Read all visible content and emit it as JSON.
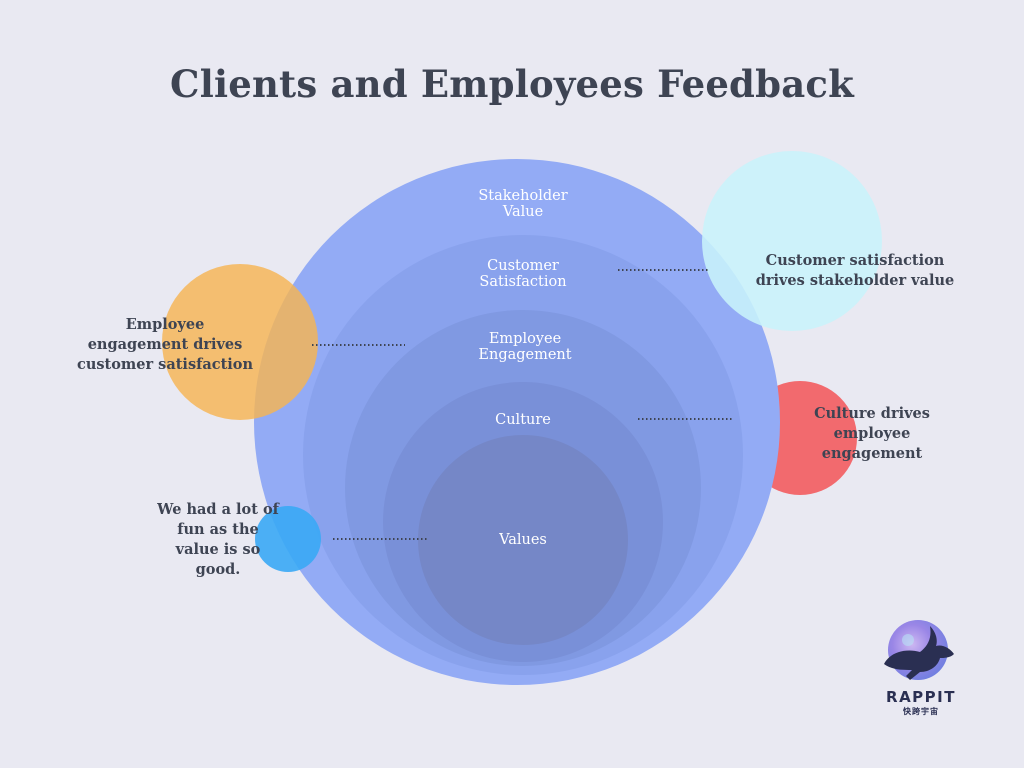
{
  "title": "Clients and Employees Feedback",
  "rings": [
    {
      "label_line1": "Stakeholder",
      "label_line2": "Value"
    },
    {
      "label_line1": "Customer",
      "label_line2": "Satisfaction"
    },
    {
      "label_line1": "Employee",
      "label_line2": "Engagement"
    },
    {
      "label_line1": "Culture",
      "label_line2": ""
    },
    {
      "label_line1": "Values",
      "label_line2": ""
    }
  ],
  "notes": {
    "customer": {
      "line1": "Customer satisfaction",
      "line2": "drives stakeholder value"
    },
    "employee": {
      "line1": "Employee",
      "line2": "engagement drives",
      "line3": "customer satisfaction"
    },
    "culture": {
      "line1": "Culture drives",
      "line2": "employee",
      "line3": "engagement"
    },
    "values": {
      "line1": "We had a lot of",
      "line2": "fun as the",
      "line3": "value is so",
      "line4": "good."
    }
  },
  "colors": {
    "background": "#e9e9f2",
    "outer_circle": "#93abf5",
    "ring_2": "#89a2ed",
    "ring_3": "#8099e2",
    "ring_4": "#7990d8",
    "ring_5": "#7587c7",
    "cyan_bubble": "#c8f3fa",
    "orange_bubble": "#f6b553",
    "red_bubble": "#f26a6e",
    "blue_bubble": "#3aa9f5",
    "title_text": "#3e4453"
  },
  "logo": {
    "word": "RAPPIT",
    "sub": "快跨宇宙"
  }
}
